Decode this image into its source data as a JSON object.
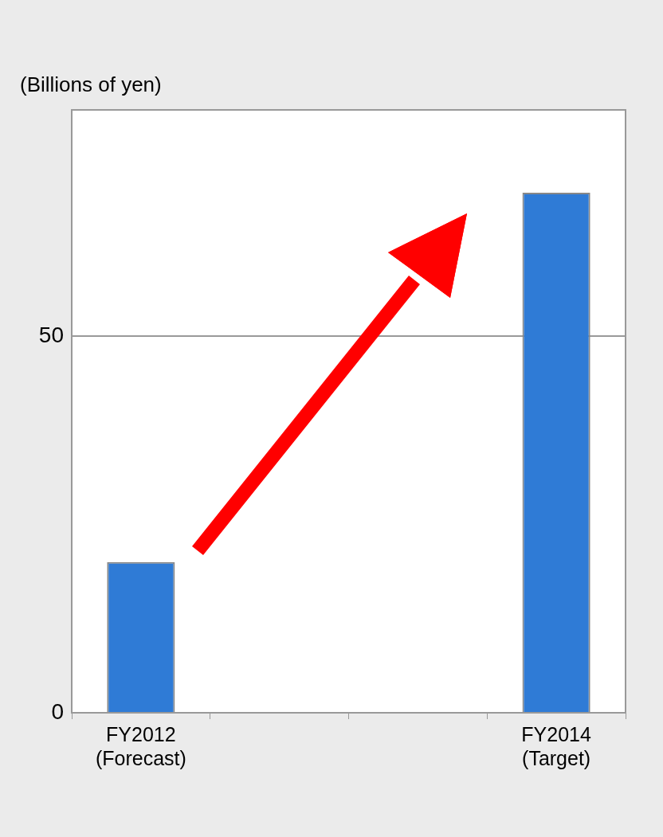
{
  "chart_data": {
    "type": "bar",
    "ylabel": "(Billions of yen)",
    "categories": [
      "FY2012\n(Forecast)",
      null,
      null,
      "FY2014\n(Target)"
    ],
    "values": [
      20,
      null,
      null,
      69
    ],
    "color": "#2f7bd6",
    "ylim": [
      0,
      80
    ],
    "yticks": [
      0,
      50
    ],
    "grid": "y",
    "legend": false
  }
}
